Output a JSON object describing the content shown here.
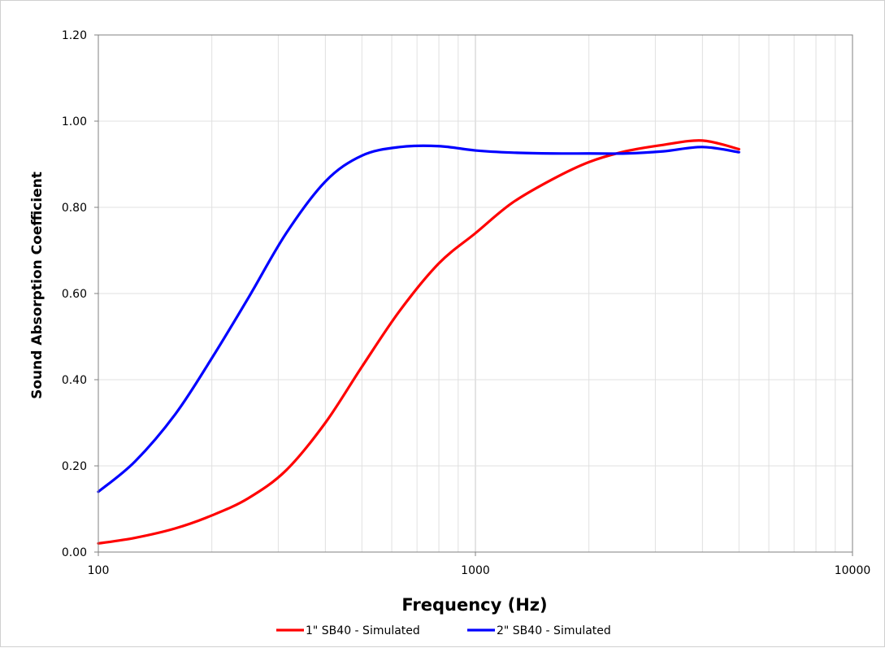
{
  "chart_data": {
    "type": "line",
    "title": "",
    "xlabel": "Frequency (Hz)",
    "ylabel": "Sound Absorption Coefficient",
    "x_scale": "log",
    "xlim": [
      100,
      10000
    ],
    "ylim": [
      0,
      1.2
    ],
    "x_tick_values": [
      100,
      1000,
      10000
    ],
    "x_tick_labels": [
      "100",
      "1000",
      "10000"
    ],
    "y_tick_values": [
      0,
      0.2,
      0.4,
      0.6,
      0.8,
      1.0,
      1.2
    ],
    "y_tick_labels": [
      "0.00",
      "0.20",
      "0.40",
      "0.60",
      "0.80",
      "1.00",
      "1.20"
    ],
    "grid": true,
    "legend_position": "bottom",
    "series": [
      {
        "name": "1\" SB40 - Simulated",
        "color": "#ff0000",
        "x": [
          100,
          125,
          160,
          200,
          250,
          315,
          400,
          500,
          630,
          800,
          1000,
          1250,
          1600,
          2000,
          2500,
          3150,
          4000,
          5000
        ],
        "y": [
          0.02,
          0.033,
          0.055,
          0.085,
          0.125,
          0.19,
          0.3,
          0.43,
          0.56,
          0.67,
          0.74,
          0.81,
          0.865,
          0.905,
          0.93,
          0.945,
          0.955,
          0.935
        ]
      },
      {
        "name": "2\" SB40 - Simulated",
        "color": "#0000ff",
        "x": [
          100,
          125,
          160,
          200,
          250,
          315,
          400,
          500,
          630,
          800,
          1000,
          1250,
          1600,
          2000,
          2500,
          3150,
          4000,
          5000
        ],
        "y": [
          0.14,
          0.21,
          0.32,
          0.45,
          0.59,
          0.74,
          0.86,
          0.92,
          0.94,
          0.942,
          0.932,
          0.927,
          0.925,
          0.925,
          0.925,
          0.93,
          0.94,
          0.928
        ]
      }
    ]
  }
}
